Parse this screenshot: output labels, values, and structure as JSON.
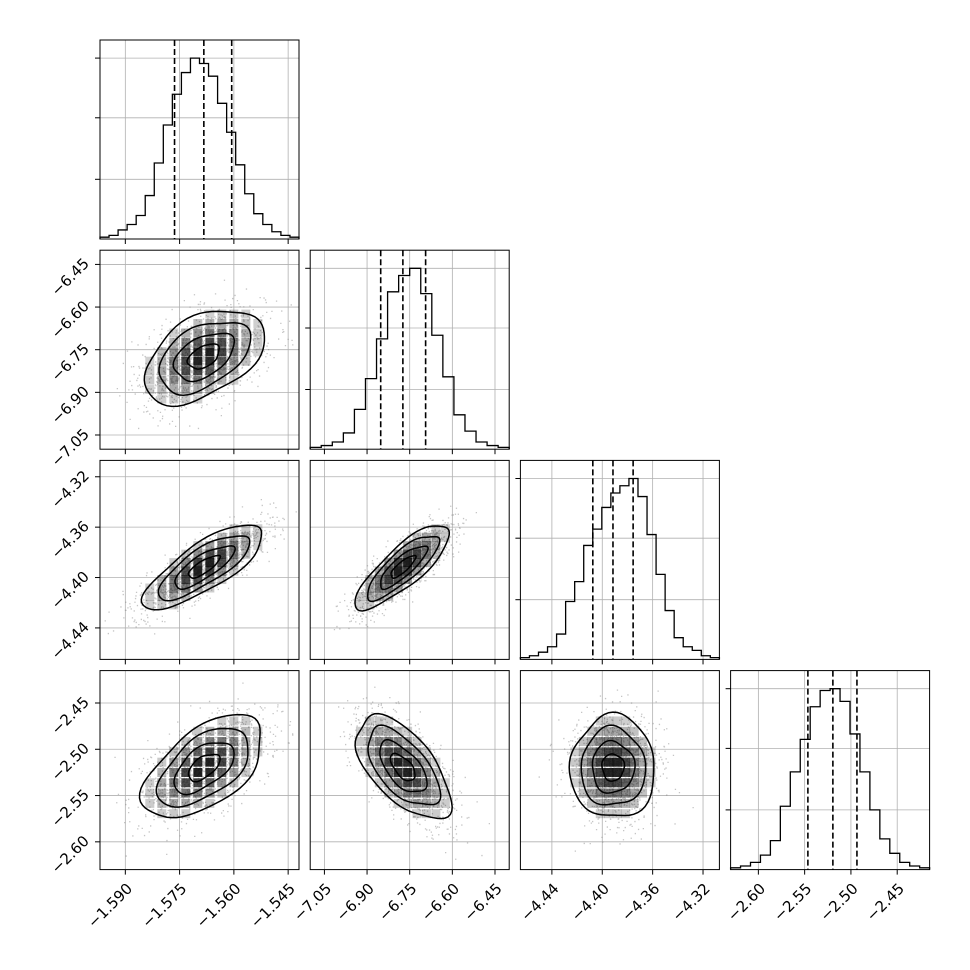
{
  "chart_data": {
    "type": "corner",
    "grid": true,
    "params": [
      {
        "range": [
          -1.597,
          -1.542
        ],
        "ticks": [
          -1.59,
          -1.575,
          -1.56,
          -1.545
        ],
        "tick_labels": [
          "−1.590",
          "−1.575",
          "−1.560",
          "−1.545"
        ],
        "quantiles": [
          -1.5764,
          -1.5683,
          -1.5606
        ],
        "hist": [
          0.01,
          0.02,
          0.05,
          0.08,
          0.13,
          0.24,
          0.42,
          0.63,
          0.8,
          0.92,
          1.0,
          0.97,
          0.9,
          0.75,
          0.59,
          0.41,
          0.25,
          0.14,
          0.08,
          0.04,
          0.02,
          0.01
        ],
        "hist_ylim": [
          0,
          1.1
        ],
        "hist_yticks": [
          0.33,
          0.67,
          1.0
        ]
      },
      {
        "range": [
          -7.1,
          -6.4
        ],
        "ticks": [
          -7.05,
          -6.9,
          -6.75,
          -6.6,
          -6.45
        ],
        "tick_labels": [
          "−7.05",
          "−6.90",
          "−6.75",
          "−6.60",
          "−6.45"
        ],
        "quantiles": [
          -6.852,
          -6.774,
          -6.694
        ],
        "hist": [
          0.01,
          0.02,
          0.04,
          0.09,
          0.22,
          0.39,
          0.61,
          0.87,
          0.96,
          1.0,
          0.86,
          0.63,
          0.4,
          0.19,
          0.1,
          0.04,
          0.02,
          0.01
        ],
        "hist_ylim": [
          0,
          1.1
        ],
        "hist_yticks": [
          0.33,
          0.67,
          1.0
        ]
      },
      {
        "range": [
          -4.465,
          -4.307
        ],
        "ticks": [
          -4.44,
          -4.4,
          -4.36,
          -4.32
        ],
        "tick_labels": [
          "−4.44",
          "−4.40",
          "−4.36",
          "−4.32"
        ],
        "quantiles": [
          -4.4075,
          -4.3915,
          -4.3755
        ],
        "hist": [
          0.01,
          0.02,
          0.04,
          0.07,
          0.14,
          0.32,
          0.43,
          0.63,
          0.72,
          0.84,
          0.92,
          0.96,
          1.0,
          0.9,
          0.69,
          0.47,
          0.27,
          0.12,
          0.07,
          0.05,
          0.02,
          0.01
        ],
        "hist_ylim": [
          0,
          1.1
        ],
        "hist_yticks": [
          0.33,
          0.67,
          1.0
        ]
      },
      {
        "range": [
          -2.63,
          -2.415
        ],
        "ticks": [
          -2.6,
          -2.55,
          -2.5,
          -2.45
        ],
        "tick_labels": [
          "−2.60",
          "−2.55",
          "−2.50",
          "−2.45"
        ],
        "quantiles": [
          -2.5465,
          -2.5195,
          -2.4935
        ],
        "hist": [
          0.01,
          0.02,
          0.04,
          0.08,
          0.16,
          0.35,
          0.54,
          0.72,
          0.9,
          0.99,
          1.0,
          0.93,
          0.75,
          0.54,
          0.33,
          0.17,
          0.09,
          0.04,
          0.02,
          0.01
        ],
        "hist_ylim": [
          0,
          1.1
        ],
        "hist_yticks": [
          0.33,
          0.67,
          1.0
        ]
      }
    ],
    "correlations": [
      [
        1.0,
        0.45,
        0.78,
        0.55
      ],
      [
        0.45,
        1.0,
        0.82,
        -0.6
      ],
      [
        0.78,
        0.82,
        1.0,
        0.0
      ],
      [
        0.55,
        -0.6,
        0.0,
        1.0
      ]
    ]
  },
  "colors": {
    "line": "#000000",
    "grid": "#b0b0b0",
    "density": "#000000",
    "scatter": "#7f7f7f"
  }
}
